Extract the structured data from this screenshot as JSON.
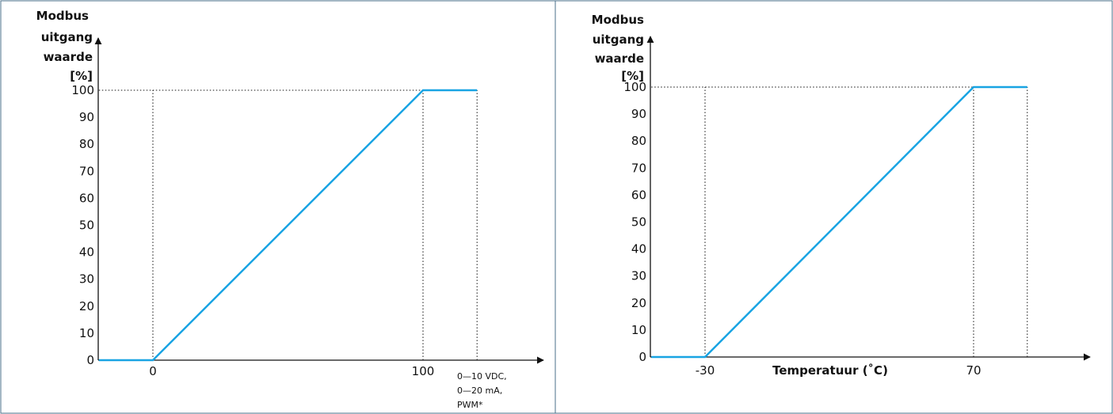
{
  "style": {
    "border_color": "#4a6f8a",
    "line_color": "#19a4e3",
    "axis_color": "#111111",
    "guide_color": "#111111"
  },
  "chart_data": [
    {
      "type": "line",
      "ylabel_lines": [
        "Modbus",
        "uitgang",
        "waarde",
        "[%]"
      ],
      "xlabel": "",
      "x_unit_lines": [
        "0—10 VDC,",
        "0—20 mA,",
        "PWM*"
      ],
      "y_ticks": [
        0,
        10,
        20,
        30,
        40,
        50,
        60,
        70,
        80,
        90,
        100
      ],
      "x_ticks": [
        0,
        100
      ],
      "x_tick_labels": [
        "0",
        "100"
      ],
      "xlim": [
        -20,
        120
      ],
      "ylim": [
        0,
        100
      ],
      "grid": false,
      "series": [
        {
          "x": [
            -20,
            0,
            100,
            120
          ],
          "y": [
            0,
            0,
            100,
            100
          ]
        }
      ]
    },
    {
      "type": "line",
      "ylabel_lines": [
        "Modbus",
        "uitgang",
        "waarde",
        "[%]"
      ],
      "xlabel": "Temperatuur (˚C)",
      "x_unit_lines": [],
      "y_ticks": [
        0,
        10,
        20,
        30,
        40,
        50,
        60,
        70,
        80,
        90,
        100
      ],
      "x_ticks": [
        -30,
        70
      ],
      "x_tick_labels": [
        "-30",
        "70"
      ],
      "xlim": [
        -50,
        90
      ],
      "ylim": [
        0,
        100
      ],
      "grid": false,
      "series": [
        {
          "x": [
            -50,
            -30,
            70,
            90
          ],
          "y": [
            0,
            0,
            100,
            100
          ]
        }
      ]
    }
  ]
}
